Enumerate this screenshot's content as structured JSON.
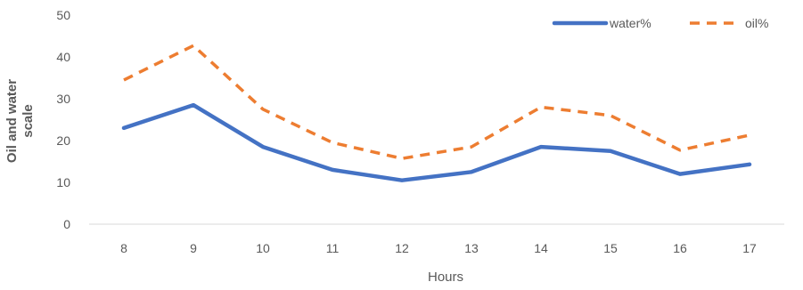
{
  "chart_data": {
    "type": "line",
    "title": "",
    "xlabel": "Hours",
    "ylabel": "Oil and water scale",
    "ylabel_lines": [
      "Oil and water",
      "scale"
    ],
    "categories": [
      "8",
      "9",
      "10",
      "11",
      "12",
      "13",
      "14",
      "15",
      "16",
      "17"
    ],
    "ylim": [
      0,
      50
    ],
    "yticks": [
      0,
      10,
      20,
      30,
      40,
      50
    ],
    "grid": false,
    "legend_position": "top-right",
    "series": [
      {
        "name": "water%",
        "values": [
          23,
          28.5,
          18.5,
          13,
          10.5,
          12.5,
          18.5,
          17.5,
          12,
          14.3
        ],
        "color": "#4472C4",
        "style": "solid"
      },
      {
        "name": "oil%",
        "values": [
          34.5,
          42.7,
          27.5,
          19.5,
          15.7,
          18.5,
          28,
          26,
          17.7,
          21.3
        ],
        "color": "#ED7D31",
        "style": "dashed"
      }
    ]
  }
}
